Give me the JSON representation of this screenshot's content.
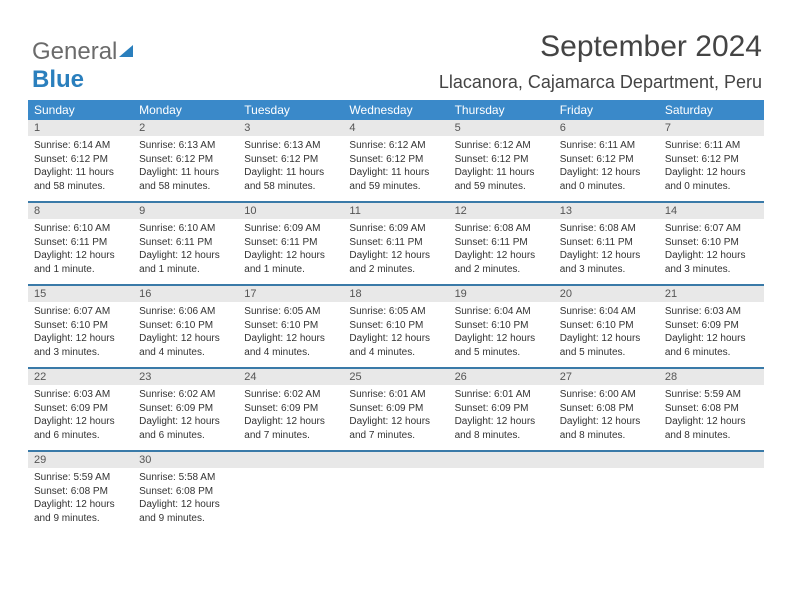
{
  "logo": {
    "part1": "General",
    "part2": "Blue"
  },
  "title": "September 2024",
  "location": "Llacanora, Cajamarca Department, Peru",
  "colors": {
    "header_bg": "#3a89c9",
    "header_text": "#ffffff",
    "daynum_bg": "#e8e8e8",
    "border": "#3a7aa8",
    "logo_grey": "#6b6b6b",
    "logo_blue": "#2a7fbd",
    "body_text": "#333333"
  },
  "fonts": {
    "title_size_pt": 22,
    "subtitle_size_pt": 14,
    "header_size_pt": 9,
    "body_size_pt": 8
  },
  "dayNames": [
    "Sunday",
    "Monday",
    "Tuesday",
    "Wednesday",
    "Thursday",
    "Friday",
    "Saturday"
  ],
  "weeks": [
    [
      {
        "n": "1",
        "sr": "Sunrise: 6:14 AM",
        "ss": "Sunset: 6:12 PM",
        "dl": "Daylight: 11 hours and 58 minutes."
      },
      {
        "n": "2",
        "sr": "Sunrise: 6:13 AM",
        "ss": "Sunset: 6:12 PM",
        "dl": "Daylight: 11 hours and 58 minutes."
      },
      {
        "n": "3",
        "sr": "Sunrise: 6:13 AM",
        "ss": "Sunset: 6:12 PM",
        "dl": "Daylight: 11 hours and 58 minutes."
      },
      {
        "n": "4",
        "sr": "Sunrise: 6:12 AM",
        "ss": "Sunset: 6:12 PM",
        "dl": "Daylight: 11 hours and 59 minutes."
      },
      {
        "n": "5",
        "sr": "Sunrise: 6:12 AM",
        "ss": "Sunset: 6:12 PM",
        "dl": "Daylight: 11 hours and 59 minutes."
      },
      {
        "n": "6",
        "sr": "Sunrise: 6:11 AM",
        "ss": "Sunset: 6:12 PM",
        "dl": "Daylight: 12 hours and 0 minutes."
      },
      {
        "n": "7",
        "sr": "Sunrise: 6:11 AM",
        "ss": "Sunset: 6:12 PM",
        "dl": "Daylight: 12 hours and 0 minutes."
      }
    ],
    [
      {
        "n": "8",
        "sr": "Sunrise: 6:10 AM",
        "ss": "Sunset: 6:11 PM",
        "dl": "Daylight: 12 hours and 1 minute."
      },
      {
        "n": "9",
        "sr": "Sunrise: 6:10 AM",
        "ss": "Sunset: 6:11 PM",
        "dl": "Daylight: 12 hours and 1 minute."
      },
      {
        "n": "10",
        "sr": "Sunrise: 6:09 AM",
        "ss": "Sunset: 6:11 PM",
        "dl": "Daylight: 12 hours and 1 minute."
      },
      {
        "n": "11",
        "sr": "Sunrise: 6:09 AM",
        "ss": "Sunset: 6:11 PM",
        "dl": "Daylight: 12 hours and 2 minutes."
      },
      {
        "n": "12",
        "sr": "Sunrise: 6:08 AM",
        "ss": "Sunset: 6:11 PM",
        "dl": "Daylight: 12 hours and 2 minutes."
      },
      {
        "n": "13",
        "sr": "Sunrise: 6:08 AM",
        "ss": "Sunset: 6:11 PM",
        "dl": "Daylight: 12 hours and 3 minutes."
      },
      {
        "n": "14",
        "sr": "Sunrise: 6:07 AM",
        "ss": "Sunset: 6:10 PM",
        "dl": "Daylight: 12 hours and 3 minutes."
      }
    ],
    [
      {
        "n": "15",
        "sr": "Sunrise: 6:07 AM",
        "ss": "Sunset: 6:10 PM",
        "dl": "Daylight: 12 hours and 3 minutes."
      },
      {
        "n": "16",
        "sr": "Sunrise: 6:06 AM",
        "ss": "Sunset: 6:10 PM",
        "dl": "Daylight: 12 hours and 4 minutes."
      },
      {
        "n": "17",
        "sr": "Sunrise: 6:05 AM",
        "ss": "Sunset: 6:10 PM",
        "dl": "Daylight: 12 hours and 4 minutes."
      },
      {
        "n": "18",
        "sr": "Sunrise: 6:05 AM",
        "ss": "Sunset: 6:10 PM",
        "dl": "Daylight: 12 hours and 4 minutes."
      },
      {
        "n": "19",
        "sr": "Sunrise: 6:04 AM",
        "ss": "Sunset: 6:10 PM",
        "dl": "Daylight: 12 hours and 5 minutes."
      },
      {
        "n": "20",
        "sr": "Sunrise: 6:04 AM",
        "ss": "Sunset: 6:10 PM",
        "dl": "Daylight: 12 hours and 5 minutes."
      },
      {
        "n": "21",
        "sr": "Sunrise: 6:03 AM",
        "ss": "Sunset: 6:09 PM",
        "dl": "Daylight: 12 hours and 6 minutes."
      }
    ],
    [
      {
        "n": "22",
        "sr": "Sunrise: 6:03 AM",
        "ss": "Sunset: 6:09 PM",
        "dl": "Daylight: 12 hours and 6 minutes."
      },
      {
        "n": "23",
        "sr": "Sunrise: 6:02 AM",
        "ss": "Sunset: 6:09 PM",
        "dl": "Daylight: 12 hours and 6 minutes."
      },
      {
        "n": "24",
        "sr": "Sunrise: 6:02 AM",
        "ss": "Sunset: 6:09 PM",
        "dl": "Daylight: 12 hours and 7 minutes."
      },
      {
        "n": "25",
        "sr": "Sunrise: 6:01 AM",
        "ss": "Sunset: 6:09 PM",
        "dl": "Daylight: 12 hours and 7 minutes."
      },
      {
        "n": "26",
        "sr": "Sunrise: 6:01 AM",
        "ss": "Sunset: 6:09 PM",
        "dl": "Daylight: 12 hours and 8 minutes."
      },
      {
        "n": "27",
        "sr": "Sunrise: 6:00 AM",
        "ss": "Sunset: 6:08 PM",
        "dl": "Daylight: 12 hours and 8 minutes."
      },
      {
        "n": "28",
        "sr": "Sunrise: 5:59 AM",
        "ss": "Sunset: 6:08 PM",
        "dl": "Daylight: 12 hours and 8 minutes."
      }
    ],
    [
      {
        "n": "29",
        "sr": "Sunrise: 5:59 AM",
        "ss": "Sunset: 6:08 PM",
        "dl": "Daylight: 12 hours and 9 minutes."
      },
      {
        "n": "30",
        "sr": "Sunrise: 5:58 AM",
        "ss": "Sunset: 6:08 PM",
        "dl": "Daylight: 12 hours and 9 minutes."
      },
      null,
      null,
      null,
      null,
      null
    ]
  ]
}
